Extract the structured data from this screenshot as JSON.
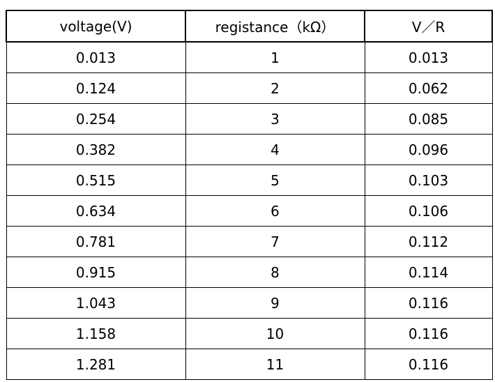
{
  "table": {
    "header": [
      "voltage(V)",
      "registance（kΩ）",
      "V／R"
    ],
    "rows": [
      [
        "0.013",
        "1",
        "0.013"
      ],
      [
        "0.124",
        "2",
        "0.062"
      ],
      [
        "0.254",
        "3",
        "0.085"
      ],
      [
        "0.382",
        "4",
        "0.096"
      ],
      [
        "0.515",
        "5",
        "0.103"
      ],
      [
        "0.634",
        "6",
        "0.106"
      ],
      [
        "0.781",
        "7",
        "0.112"
      ],
      [
        "0.915",
        "8",
        "0.114"
      ],
      [
        "1.043",
        "9",
        "0.116"
      ],
      [
        "1.158",
        "10",
        "0.116"
      ],
      [
        "1.281",
        "11",
        "0.116"
      ]
    ]
  }
}
